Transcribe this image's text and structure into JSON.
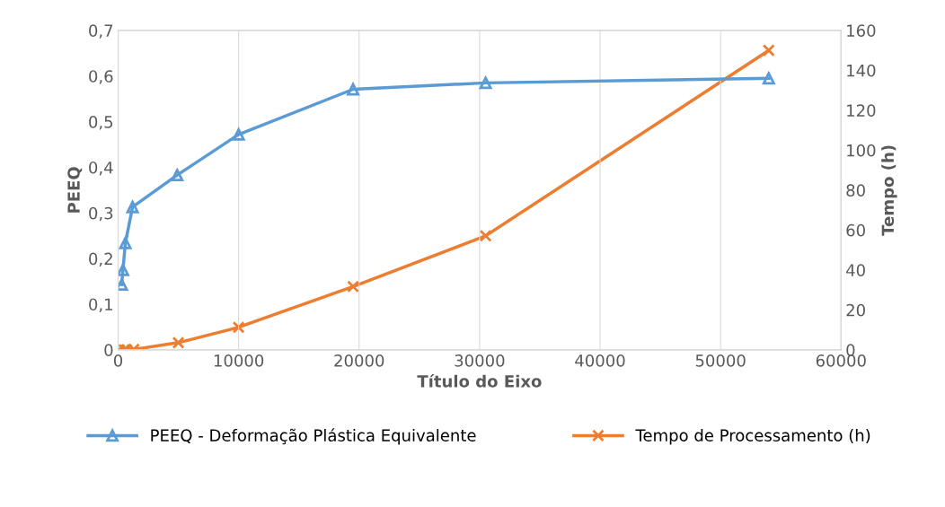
{
  "chart_data": {
    "type": "line",
    "xlabel": "Título do Eixo",
    "ylabel": "PEEQ",
    "y2label": "Tempo (h)",
    "xlim": [
      0,
      60000
    ],
    "xticks": [
      0,
      10000,
      20000,
      30000,
      40000,
      50000,
      60000
    ],
    "ylim": [
      0,
      0.7
    ],
    "yticks": [
      {
        "value": 0,
        "label": "0"
      },
      {
        "value": 0.1,
        "label": "0,1"
      },
      {
        "value": 0.2,
        "label": "0,2"
      },
      {
        "value": 0.3,
        "label": "0,3"
      },
      {
        "value": 0.4,
        "label": "0,4"
      },
      {
        "value": 0.5,
        "label": "0,5"
      },
      {
        "value": 0.6,
        "label": "0,6"
      },
      {
        "value": 0.7,
        "label": "0,7"
      }
    ],
    "y2lim": [
      0,
      160
    ],
    "y2ticks": [
      0,
      20,
      40,
      60,
      80,
      100,
      120,
      140,
      160
    ],
    "grid": "x",
    "legend": "bottom",
    "series": [
      {
        "name": "PEEQ - Deformação Plástica Equivalente",
        "color": "#5b9bd5",
        "marker": "triangle",
        "x": [
          300,
          400,
          600,
          1200,
          4900,
          10000,
          19500,
          30500,
          54000
        ],
        "values": [
          0.143,
          0.175,
          0.234,
          0.313,
          0.383,
          0.472,
          0.571,
          0.585,
          0.595
        ]
      },
      {
        "name": "Tempo de Processamento (h)",
        "color": "#ed7d31",
        "marker": "cross",
        "axis": "y2",
        "x": [
          100,
          500,
          700,
          1300,
          5000,
          10000,
          19500,
          30500,
          54000
        ],
        "values": [
          0,
          0,
          0,
          0.2,
          3.6,
          11.3,
          31.7,
          57.1,
          150
        ]
      }
    ]
  }
}
